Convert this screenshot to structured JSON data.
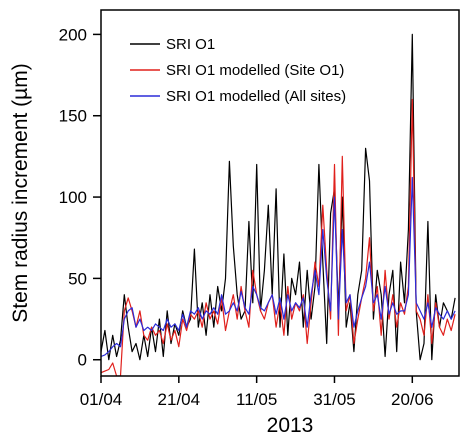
{
  "chart_data": {
    "type": "line",
    "xlabel": "2013",
    "ylabel": "Stem radius increment (µm)",
    "x_tick_labels": [
      "01/04",
      "21/04",
      "11/05",
      "31/05",
      "20/06"
    ],
    "x_tick_days": [
      0,
      20,
      40,
      60,
      80
    ],
    "x_range_days": [
      0,
      92
    ],
    "ylim": [
      -10,
      215
    ],
    "y_ticks": [
      0,
      50,
      100,
      150,
      200
    ],
    "grid": false,
    "legend_position": "top-left",
    "series": [
      {
        "name": "SRI O1",
        "color": "#000000",
        "values": [
          [
            0,
            5
          ],
          [
            1,
            18
          ],
          [
            2,
            0
          ],
          [
            3,
            15
          ],
          [
            4,
            2
          ],
          [
            5,
            12
          ],
          [
            6,
            40
          ],
          [
            7,
            20
          ],
          [
            8,
            5
          ],
          [
            9,
            10
          ],
          [
            10,
            0
          ],
          [
            11,
            15
          ],
          [
            12,
            2
          ],
          [
            13,
            20
          ],
          [
            14,
            5
          ],
          [
            15,
            25
          ],
          [
            16,
            2
          ],
          [
            17,
            30
          ],
          [
            18,
            10
          ],
          [
            19,
            22
          ],
          [
            20,
            15
          ],
          [
            21,
            30
          ],
          [
            22,
            20
          ],
          [
            23,
            25
          ],
          [
            24,
            68
          ],
          [
            25,
            20
          ],
          [
            26,
            35
          ],
          [
            27,
            15
          ],
          [
            28,
            40
          ],
          [
            29,
            20
          ],
          [
            30,
            45
          ],
          [
            31,
            30
          ],
          [
            32,
            50
          ],
          [
            33,
            122
          ],
          [
            34,
            70
          ],
          [
            35,
            40
          ],
          [
            36,
            25
          ],
          [
            37,
            30
          ],
          [
            38,
            85
          ],
          [
            39,
            35
          ],
          [
            40,
            120
          ],
          [
            41,
            30
          ],
          [
            42,
            55
          ],
          [
            43,
            95
          ],
          [
            44,
            40
          ],
          [
            45,
            105
          ],
          [
            46,
            20
          ],
          [
            47,
            65
          ],
          [
            48,
            15
          ],
          [
            49,
            50
          ],
          [
            50,
            40
          ],
          [
            51,
            60
          ],
          [
            52,
            20
          ],
          [
            53,
            55
          ],
          [
            54,
            25
          ],
          [
            55,
            45
          ],
          [
            56,
            120
          ],
          [
            57,
            60
          ],
          [
            58,
            10
          ],
          [
            59,
            90
          ],
          [
            60,
            105
          ],
          [
            61,
            30
          ],
          [
            62,
            100
          ],
          [
            63,
            20
          ],
          [
            64,
            35
          ],
          [
            65,
            5
          ],
          [
            66,
            40
          ],
          [
            67,
            55
          ],
          [
            68,
            130
          ],
          [
            69,
            110
          ],
          [
            70,
            25
          ],
          [
            71,
            55
          ],
          [
            72,
            40
          ],
          [
            73,
            2
          ],
          [
            74,
            40
          ],
          [
            75,
            55
          ],
          [
            76,
            5
          ],
          [
            77,
            60
          ],
          [
            78,
            35
          ],
          [
            79,
            80
          ],
          [
            80,
            200
          ],
          [
            81,
            30
          ],
          [
            82,
            0
          ],
          [
            83,
            10
          ],
          [
            84,
            85
          ],
          [
            85,
            0
          ],
          [
            86,
            40
          ],
          [
            87,
            20
          ],
          [
            88,
            35
          ],
          [
            89,
            30
          ],
          [
            90,
            25
          ],
          [
            91,
            38
          ]
        ]
      },
      {
        "name": "SRI O1 modelled (Site O1)",
        "color": "#e0201c",
        "values": [
          [
            0,
            -8
          ],
          [
            1,
            -7
          ],
          [
            2,
            -6
          ],
          [
            3,
            -2
          ],
          [
            4,
            -10
          ],
          [
            5,
            -10
          ],
          [
            6,
            30
          ],
          [
            7,
            38
          ],
          [
            8,
            30
          ],
          [
            9,
            20
          ],
          [
            10,
            30
          ],
          [
            11,
            15
          ],
          [
            12,
            12
          ],
          [
            13,
            20
          ],
          [
            14,
            15
          ],
          [
            15,
            18
          ],
          [
            16,
            10
          ],
          [
            17,
            22
          ],
          [
            18,
            12
          ],
          [
            19,
            18
          ],
          [
            20,
            8
          ],
          [
            21,
            25
          ],
          [
            22,
            18
          ],
          [
            23,
            28
          ],
          [
            24,
            25
          ],
          [
            25,
            30
          ],
          [
            26,
            20
          ],
          [
            27,
            35
          ],
          [
            28,
            25
          ],
          [
            29,
            30
          ],
          [
            30,
            22
          ],
          [
            31,
            38
          ],
          [
            32,
            18
          ],
          [
            33,
            30
          ],
          [
            34,
            40
          ],
          [
            35,
            25
          ],
          [
            36,
            45
          ],
          [
            37,
            30
          ],
          [
            38,
            20
          ],
          [
            39,
            55
          ],
          [
            40,
            40
          ],
          [
            41,
            30
          ],
          [
            42,
            25
          ],
          [
            43,
            35
          ],
          [
            44,
            40
          ],
          [
            45,
            20
          ],
          [
            46,
            35
          ],
          [
            47,
            15
          ],
          [
            48,
            45
          ],
          [
            49,
            25
          ],
          [
            50,
            35
          ],
          [
            51,
            30
          ],
          [
            52,
            40
          ],
          [
            53,
            10
          ],
          [
            54,
            35
          ],
          [
            55,
            60
          ],
          [
            56,
            45
          ],
          [
            57,
            95
          ],
          [
            58,
            55
          ],
          [
            59,
            25
          ],
          [
            60,
            120
          ],
          [
            61,
            15
          ],
          [
            62,
            125
          ],
          [
            63,
            30
          ],
          [
            64,
            40
          ],
          [
            65,
            10
          ],
          [
            66,
            25
          ],
          [
            67,
            38
          ],
          [
            68,
            50
          ],
          [
            69,
            75
          ],
          [
            70,
            30
          ],
          [
            71,
            45
          ],
          [
            72,
            15
          ],
          [
            73,
            55
          ],
          [
            74,
            25
          ],
          [
            75,
            40
          ],
          [
            76,
            20
          ],
          [
            77,
            35
          ],
          [
            78,
            28
          ],
          [
            79,
            45
          ],
          [
            80,
            160
          ],
          [
            81,
            30
          ],
          [
            82,
            25
          ],
          [
            83,
            15
          ],
          [
            84,
            40
          ],
          [
            85,
            10
          ],
          [
            86,
            35
          ],
          [
            87,
            20
          ],
          [
            88,
            15
          ],
          [
            89,
            25
          ],
          [
            90,
            18
          ],
          [
            91,
            28
          ]
        ]
      },
      {
        "name": "SRI O1 modelled (All sites)",
        "color": "#2b2bd8",
        "values": [
          [
            0,
            2
          ],
          [
            1,
            3
          ],
          [
            2,
            5
          ],
          [
            3,
            8
          ],
          [
            4,
            10
          ],
          [
            5,
            8
          ],
          [
            6,
            25
          ],
          [
            7,
            30
          ],
          [
            8,
            32
          ],
          [
            9,
            20
          ],
          [
            10,
            25
          ],
          [
            11,
            18
          ],
          [
            12,
            20
          ],
          [
            13,
            18
          ],
          [
            14,
            22
          ],
          [
            15,
            20
          ],
          [
            16,
            18
          ],
          [
            17,
            25
          ],
          [
            18,
            20
          ],
          [
            19,
            22
          ],
          [
            20,
            18
          ],
          [
            21,
            28
          ],
          [
            22,
            20
          ],
          [
            23,
            30
          ],
          [
            24,
            28
          ],
          [
            25,
            32
          ],
          [
            26,
            25
          ],
          [
            27,
            30
          ],
          [
            28,
            28
          ],
          [
            29,
            32
          ],
          [
            30,
            28
          ],
          [
            31,
            40
          ],
          [
            32,
            28
          ],
          [
            33,
            30
          ],
          [
            34,
            35
          ],
          [
            35,
            30
          ],
          [
            36,
            42
          ],
          [
            37,
            32
          ],
          [
            38,
            28
          ],
          [
            39,
            45
          ],
          [
            40,
            40
          ],
          [
            41,
            32
          ],
          [
            42,
            30
          ],
          [
            43,
            35
          ],
          [
            44,
            40
          ],
          [
            45,
            28
          ],
          [
            46,
            38
          ],
          [
            47,
            25
          ],
          [
            48,
            40
          ],
          [
            49,
            30
          ],
          [
            50,
            35
          ],
          [
            51,
            32
          ],
          [
            52,
            38
          ],
          [
            53,
            20
          ],
          [
            54,
            40
          ],
          [
            55,
            55
          ],
          [
            56,
            40
          ],
          [
            57,
            80
          ],
          [
            58,
            50
          ],
          [
            59,
            30
          ],
          [
            60,
            100
          ],
          [
            61,
            25
          ],
          [
            62,
            80
          ],
          [
            63,
            35
          ],
          [
            64,
            40
          ],
          [
            65,
            20
          ],
          [
            66,
            30
          ],
          [
            67,
            38
          ],
          [
            68,
            45
          ],
          [
            69,
            60
          ],
          [
            70,
            35
          ],
          [
            71,
            40
          ],
          [
            72,
            25
          ],
          [
            73,
            45
          ],
          [
            74,
            28
          ],
          [
            75,
            35
          ],
          [
            76,
            28
          ],
          [
            77,
            30
          ],
          [
            78,
            30
          ],
          [
            79,
            40
          ],
          [
            80,
            112
          ],
          [
            81,
            35
          ],
          [
            82,
            30
          ],
          [
            83,
            25
          ],
          [
            84,
            35
          ],
          [
            85,
            20
          ],
          [
            86,
            32
          ],
          [
            87,
            28
          ],
          [
            88,
            25
          ],
          [
            89,
            30
          ],
          [
            90,
            25
          ],
          [
            91,
            30
          ]
        ]
      }
    ]
  }
}
